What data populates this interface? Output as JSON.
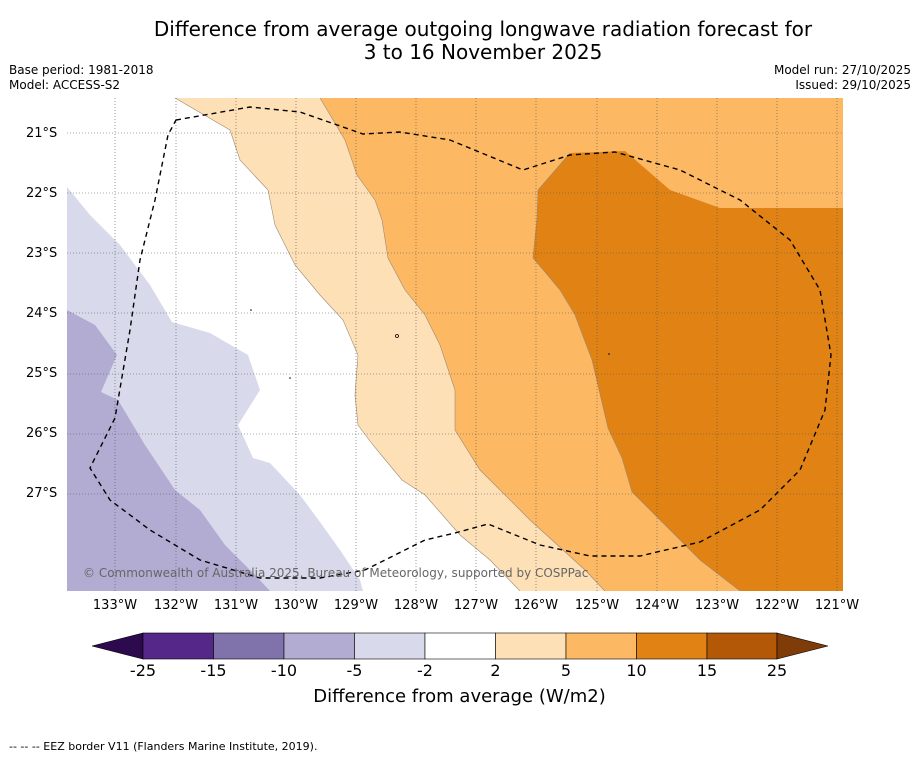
{
  "title_line1": "Difference from average outgoing longwave radiation forecast for",
  "title_line2": "3 to 16 November 2025",
  "base_period": "Base period: 1981-2018",
  "model": "Model: ACCESS-S2",
  "model_run": "Model run: 27/10/2025",
  "issued": "Issued: 29/10/2025",
  "copyright": "© Commonwealth of Australia 2025, Bureau of Meteorology, supported by COSPPac",
  "latitudes": [
    "21°S",
    "22°S",
    "23°S",
    "24°S",
    "25°S",
    "26°S",
    "27°S"
  ],
  "longitudes": [
    "133°W",
    "132°W",
    "131°W",
    "130°W",
    "129°W",
    "128°W",
    "127°W",
    "126°W",
    "125°W",
    "124°W",
    "123°W",
    "122°W",
    "121°W"
  ],
  "colorbar": {
    "title": "Difference from average (W/m2)",
    "ticks": [
      "-25",
      "-15",
      "-10",
      "-5",
      "-2",
      "2",
      "5",
      "10",
      "15",
      "25"
    ],
    "colors": {
      "below_min": "#2d0a4e",
      "n25_n15": "#542788",
      "n15_n10": "#8073ac",
      "n10_n5": "#b2abd2",
      "n5_n2": "#d8daeb",
      "n2_2": "#ffffff",
      "p2_5": "#fee0b6",
      "p5_10": "#fdb863",
      "p10_15": "#e08214",
      "p15_25": "#b35806",
      "above_max": "#7f3b08"
    }
  },
  "footer": "--  --  -- EEZ border V11 (Flanders Marine Institute, 2019)."
}
